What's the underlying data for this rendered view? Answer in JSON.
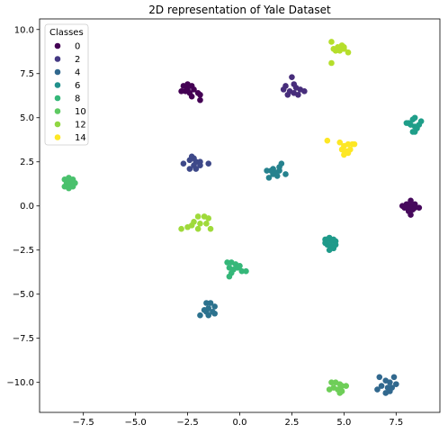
{
  "chart_data": {
    "type": "scatter",
    "title": "2D representation of Yale Dataset",
    "xlabel": "",
    "ylabel": "",
    "xlim": [
      -9.6,
      9.6
    ],
    "ylim": [
      -11.7,
      10.6
    ],
    "xticks": [
      -7.5,
      -5.0,
      -2.5,
      0.0,
      2.5,
      5.0,
      7.5
    ],
    "xtick_labels": [
      "−7.5",
      "−5.0",
      "−2.5",
      "0.0",
      "2.5",
      "5.0",
      "7.5"
    ],
    "yticks": [
      10.0,
      7.5,
      5.0,
      2.5,
      0.0,
      -2.5,
      -5.0,
      -7.5,
      -10.0
    ],
    "ytick_labels": [
      "10.0",
      "7.5",
      "5.0",
      "2.5",
      "0.0",
      "−2.5",
      "−5.0",
      "−7.5",
      "−10.0"
    ],
    "grid": false,
    "legend": {
      "title": "Classes",
      "placement": "top-left",
      "entries": [
        {
          "label": "0",
          "color": "#440154"
        },
        {
          "label": "2",
          "color": "#443983"
        },
        {
          "label": "4",
          "color": "#31688e"
        },
        {
          "label": "6",
          "color": "#21918c"
        },
        {
          "label": "8",
          "color": "#35b779"
        },
        {
          "label": "10",
          "color": "#5ec962"
        },
        {
          "label": "12",
          "color": "#90d743"
        },
        {
          "label": "14",
          "color": "#fde725"
        }
      ]
    },
    "clusters": [
      {
        "class": 0,
        "color": "#440154",
        "points": [
          [
            -2.7,
            6.8
          ],
          [
            -2.5,
            6.9
          ],
          [
            -2.3,
            6.8
          ],
          [
            -2.2,
            6.6
          ],
          [
            -2.6,
            6.5
          ],
          [
            -2.4,
            6.4
          ],
          [
            -2.0,
            6.4
          ],
          [
            -1.9,
            6.3
          ],
          [
            -2.3,
            6.2
          ],
          [
            -2.5,
            6.6
          ],
          [
            -1.9,
            6.0
          ],
          [
            -2.8,
            6.5
          ]
        ]
      },
      {
        "class": 1,
        "color": "#46085c",
        "points": [
          [
            7.8,
            0.0
          ],
          [
            8.0,
            0.1
          ],
          [
            8.2,
            0.0
          ],
          [
            8.4,
            -0.1
          ],
          [
            8.6,
            -0.1
          ],
          [
            8.2,
            0.3
          ],
          [
            7.9,
            -0.1
          ],
          [
            8.3,
            -0.2
          ],
          [
            8.1,
            -0.3
          ],
          [
            8.2,
            -0.5
          ],
          [
            8.0,
            -0.1
          ],
          [
            8.4,
            0.1
          ]
        ]
      },
      {
        "class": 2,
        "color": "#472d7b",
        "points": [
          [
            2.2,
            6.8
          ],
          [
            2.5,
            7.3
          ],
          [
            2.6,
            6.9
          ],
          [
            2.4,
            6.5
          ],
          [
            2.7,
            6.7
          ],
          [
            2.8,
            6.3
          ],
          [
            3.1,
            6.5
          ],
          [
            2.3,
            6.3
          ],
          [
            2.1,
            6.6
          ],
          [
            2.9,
            6.6
          ],
          [
            2.6,
            6.4
          ]
        ]
      },
      {
        "class": 3,
        "color": "#3e4989",
        "points": [
          [
            -2.7,
            2.4
          ],
          [
            -2.4,
            2.6
          ],
          [
            -2.3,
            2.8
          ],
          [
            -2.1,
            2.5
          ],
          [
            -1.9,
            2.5
          ],
          [
            -2.2,
            2.3
          ],
          [
            -2.4,
            2.1
          ],
          [
            -2.1,
            2.1
          ],
          [
            -1.5,
            2.4
          ],
          [
            -1.9,
            2.3
          ],
          [
            -2.2,
            2.7
          ]
        ]
      },
      {
        "class": 4,
        "color": "#31688e",
        "points": [
          [
            6.7,
            -9.7
          ],
          [
            7.0,
            -9.9
          ],
          [
            7.2,
            -10.0
          ],
          [
            7.4,
            -9.7
          ],
          [
            7.1,
            -10.3
          ],
          [
            7.3,
            -10.3
          ],
          [
            7.0,
            -10.6
          ],
          [
            6.8,
            -10.2
          ],
          [
            6.6,
            -10.4
          ],
          [
            7.5,
            -10.1
          ],
          [
            7.2,
            -10.5
          ]
        ]
      },
      {
        "class": 5,
        "color": "#2c728e",
        "points": [
          [
            -1.6,
            -5.5
          ],
          [
            -1.4,
            -5.5
          ],
          [
            -1.2,
            -5.7
          ],
          [
            -1.5,
            -5.8
          ],
          [
            -1.3,
            -6.0
          ],
          [
            -1.7,
            -5.9
          ],
          [
            -1.5,
            -6.2
          ],
          [
            -1.9,
            -6.2
          ],
          [
            -1.2,
            -6.1
          ],
          [
            -1.6,
            -6.0
          ]
        ]
      },
      {
        "class": 6,
        "color": "#26828e",
        "points": [
          [
            1.3,
            2.0
          ],
          [
            1.6,
            2.1
          ],
          [
            1.9,
            2.2
          ],
          [
            2.0,
            2.4
          ],
          [
            1.7,
            1.9
          ],
          [
            1.8,
            1.7
          ],
          [
            2.2,
            1.8
          ],
          [
            1.4,
            1.6
          ],
          [
            1.6,
            1.8
          ],
          [
            1.9,
            2.0
          ],
          [
            1.5,
            2.0
          ]
        ]
      },
      {
        "class": 7,
        "color": "#1f9a8a",
        "points": [
          [
            4.1,
            -1.9
          ],
          [
            4.3,
            -1.8
          ],
          [
            4.4,
            -2.0
          ],
          [
            4.6,
            -2.0
          ],
          [
            4.2,
            -2.2
          ],
          [
            4.4,
            -2.3
          ],
          [
            4.3,
            -2.5
          ],
          [
            4.5,
            -2.4
          ],
          [
            4.1,
            -2.1
          ],
          [
            4.6,
            -2.2
          ],
          [
            4.2,
            -1.9
          ],
          [
            4.5,
            -1.9
          ]
        ]
      },
      {
        "class": 8,
        "color": "#1f9e89",
        "points": [
          [
            8.0,
            4.7
          ],
          [
            8.3,
            4.9
          ],
          [
            8.4,
            5.0
          ],
          [
            8.2,
            4.6
          ],
          [
            8.4,
            4.5
          ],
          [
            8.7,
            4.8
          ],
          [
            8.5,
            4.4
          ],
          [
            8.3,
            4.2
          ],
          [
            8.4,
            4.2
          ],
          [
            8.6,
            4.6
          ],
          [
            8.1,
            4.7
          ]
        ]
      },
      {
        "class": 9,
        "color": "#35b779",
        "points": [
          [
            -0.6,
            -3.2
          ],
          [
            -0.4,
            -3.2
          ],
          [
            -0.2,
            -3.3
          ],
          [
            -0.5,
            -3.5
          ],
          [
            -0.3,
            -3.6
          ],
          [
            -0.1,
            -3.5
          ],
          [
            0.1,
            -3.7
          ],
          [
            0.3,
            -3.7
          ],
          [
            -0.4,
            -3.8
          ],
          [
            -0.5,
            -4.0
          ],
          [
            0.0,
            -3.4
          ]
        ]
      },
      {
        "class": 10,
        "color": "#4ac16d",
        "points": [
          [
            -8.4,
            1.5
          ],
          [
            -8.2,
            1.6
          ],
          [
            -8.0,
            1.5
          ],
          [
            -8.3,
            1.3
          ],
          [
            -8.1,
            1.3
          ],
          [
            -7.9,
            1.3
          ],
          [
            -8.4,
            1.1
          ],
          [
            -8.2,
            1.2
          ],
          [
            -8.0,
            1.1
          ],
          [
            -8.2,
            1.0
          ],
          [
            -8.3,
            1.4
          ],
          [
            -8.0,
            1.4
          ]
        ]
      },
      {
        "class": 11,
        "color": "#6ece58",
        "points": [
          [
            4.4,
            -10.0
          ],
          [
            4.6,
            -10.0
          ],
          [
            4.8,
            -10.1
          ],
          [
            4.9,
            -10.2
          ],
          [
            4.5,
            -10.3
          ],
          [
            4.7,
            -10.4
          ],
          [
            4.9,
            -10.5
          ],
          [
            4.3,
            -10.4
          ],
          [
            5.1,
            -10.2
          ],
          [
            4.8,
            -10.6
          ]
        ]
      },
      {
        "class": 12,
        "color": "#9fda3a",
        "points": [
          [
            -2.0,
            -0.6
          ],
          [
            -1.7,
            -0.6
          ],
          [
            -1.5,
            -0.7
          ],
          [
            -2.2,
            -0.9
          ],
          [
            -1.9,
            -1.0
          ],
          [
            -1.6,
            -1.0
          ],
          [
            -2.3,
            -1.1
          ],
          [
            -2.5,
            -1.2
          ],
          [
            -2.0,
            -1.3
          ],
          [
            -1.4,
            -1.3
          ],
          [
            -2.8,
            -1.3
          ]
        ]
      },
      {
        "class": 13,
        "color": "#b5de2b",
        "points": [
          [
            4.4,
            9.3
          ],
          [
            4.7,
            9.0
          ],
          [
            4.9,
            9.1
          ],
          [
            5.0,
            9.0
          ],
          [
            4.6,
            8.8
          ],
          [
            4.8,
            8.8
          ],
          [
            5.2,
            8.7
          ],
          [
            4.5,
            8.9
          ],
          [
            5.0,
            8.9
          ],
          [
            4.4,
            8.1
          ]
        ]
      },
      {
        "class": 14,
        "color": "#fde725",
        "points": [
          [
            4.2,
            3.7
          ],
          [
            4.8,
            3.6
          ],
          [
            5.0,
            3.4
          ],
          [
            5.2,
            3.5
          ],
          [
            5.4,
            3.5
          ],
          [
            4.9,
            3.2
          ],
          [
            5.1,
            3.1
          ],
          [
            5.3,
            3.2
          ],
          [
            5.0,
            2.9
          ],
          [
            5.2,
            3.0
          ],
          [
            5.5,
            3.5
          ]
        ]
      }
    ]
  }
}
